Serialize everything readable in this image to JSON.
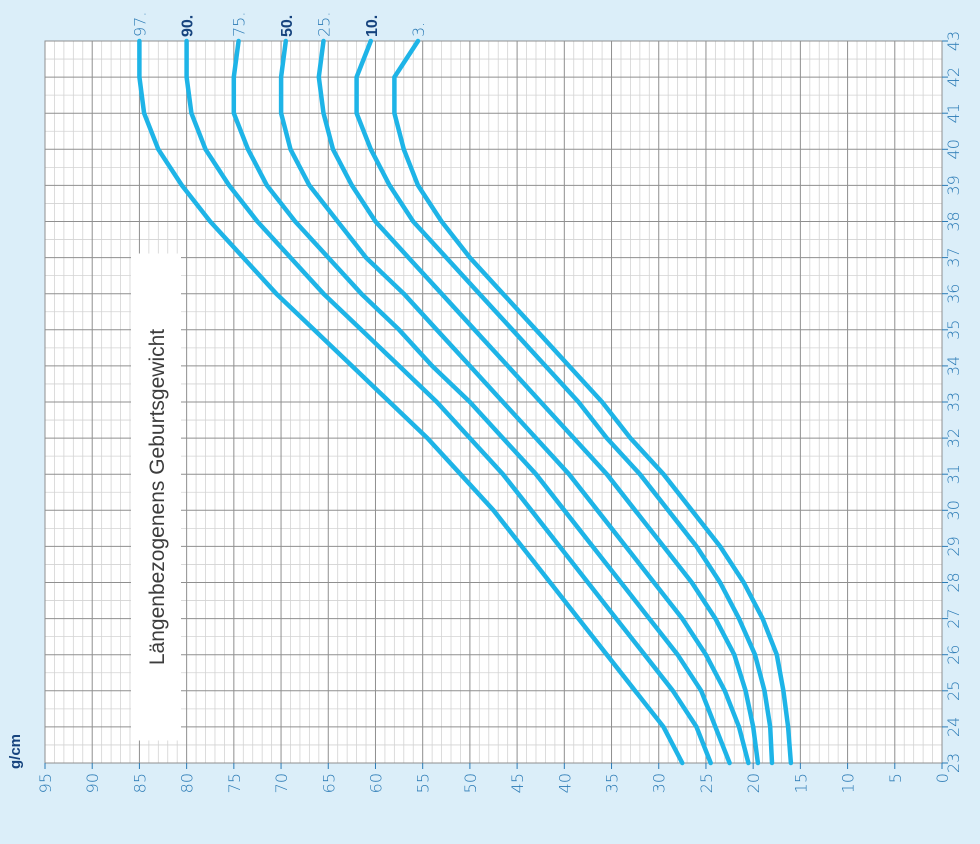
{
  "chart_data": {
    "type": "line",
    "title": "Längenbezogenens Geburtsgewicht",
    "unit_label": "g/cm",
    "x": [
      23,
      24,
      25,
      26,
      27,
      28,
      29,
      30,
      31,
      32,
      33,
      34,
      35,
      36,
      37,
      38,
      39,
      40,
      41,
      42,
      43
    ],
    "xlim": [
      23,
      43
    ],
    "ylim": [
      0,
      95
    ],
    "y_ticks": [
      95,
      90,
      85,
      80,
      75,
      70,
      65,
      60,
      55,
      50,
      45,
      40,
      35,
      30,
      25,
      20,
      15,
      10,
      5,
      0
    ],
    "grid": true,
    "series": [
      {
        "name": "97.",
        "bold": false,
        "values": [
          27.5,
          29.5,
          32.5,
          35.5,
          38.5,
          41.5,
          44.5,
          47.5,
          51,
          54.5,
          58.5,
          62.5,
          66.5,
          70.5,
          74,
          77.5,
          80.5,
          83,
          84.5,
          85,
          85
        ]
      },
      {
        "name": "90.",
        "bold": true,
        "values": [
          24.5,
          26,
          28.5,
          31.5,
          34.5,
          37.5,
          40.5,
          43.5,
          46.5,
          50,
          53.5,
          57.5,
          61.5,
          65.5,
          69,
          72.5,
          75.5,
          78,
          79.5,
          80,
          80
        ]
      },
      {
        "name": "75.",
        "bold": false,
        "values": [
          22.5,
          24,
          25.5,
          28,
          31,
          34,
          37,
          40,
          43,
          46.5,
          50,
          54,
          57.5,
          61.5,
          65,
          68.5,
          71.5,
          73.5,
          75,
          75,
          74.5
        ]
      },
      {
        "name": "50.",
        "bold": true,
        "values": [
          20.5,
          21.5,
          23,
          25,
          27.5,
          30.5,
          33.5,
          36.5,
          39.5,
          43,
          46.5,
          50,
          53.5,
          57,
          61,
          64,
          67,
          69,
          70,
          70,
          69.5
        ]
      },
      {
        "name": "25.",
        "bold": false,
        "values": [
          19.5,
          20,
          20.8,
          22,
          24,
          26.5,
          29.5,
          32.5,
          35.5,
          39,
          42.5,
          46,
          49.5,
          53,
          56.5,
          60,
          62.5,
          64.5,
          65.5,
          66,
          65.5
        ]
      },
      {
        "name": "10.",
        "bold": true,
        "values": [
          18,
          18.2,
          18.8,
          19.8,
          21.5,
          23.5,
          26,
          29,
          32,
          35.5,
          38.5,
          42,
          45.5,
          49,
          52.5,
          56,
          58.5,
          60.5,
          62,
          62,
          60.5
        ]
      },
      {
        "name": "3.",
        "bold": false,
        "values": [
          16,
          16.3,
          16.8,
          17.5,
          19,
          21,
          23.5,
          26.5,
          29.5,
          33,
          36,
          39.5,
          43,
          46.5,
          50,
          53,
          55.5,
          57,
          58,
          58,
          55.5
        ]
      }
    ],
    "colors": {
      "background": "#dbeef9",
      "plot": "#ffffff",
      "grid_major": "#8f8f8f",
      "grid_minor": "#d3d3d3",
      "curve": "#1eb4e7",
      "ticks": "#2a7ab5",
      "bold_label": "#16437e"
    }
  }
}
